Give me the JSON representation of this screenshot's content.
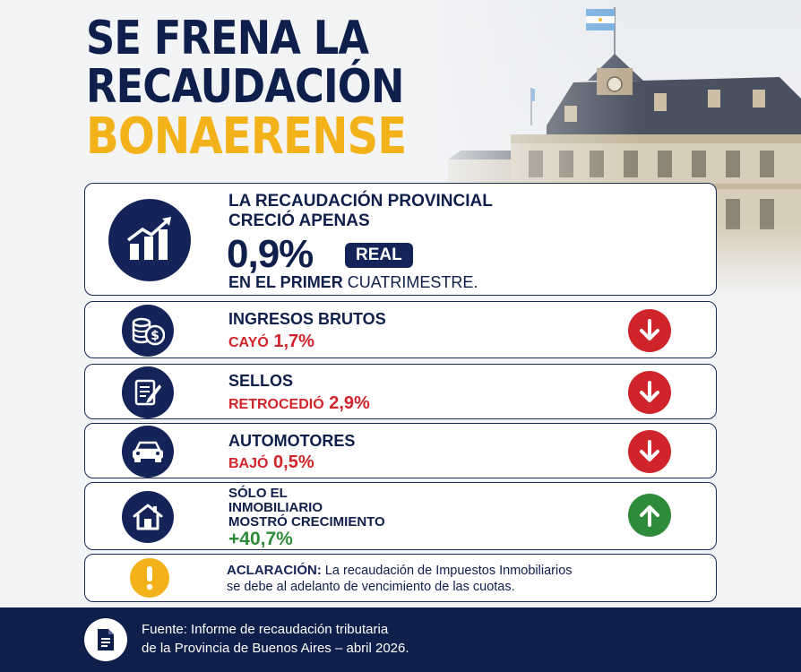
{
  "title": {
    "line1": "SE FRENA LA",
    "line2": "RECAUDACIÓN",
    "line3": "BONAERENSE"
  },
  "colors": {
    "navy": "#0f1f4b",
    "accent_yellow": "#f4b21a",
    "decline_red": "#d0242b",
    "growth_green": "#2e8b3a"
  },
  "main_card": {
    "icon": "growth-chart-icon",
    "line1": "LA RECAUDACIÓN PROVINCIAL",
    "line2": "CRECIÓ APENAS",
    "value": "0,9%",
    "badge": "REAL",
    "line3_bold": "EN EL PRIMER",
    "line3_rest": "CUATRIMESTRE."
  },
  "items": [
    {
      "icon": "coins-dollar-icon",
      "label": "INGRESOS BRUTOS",
      "verb": "CAYÓ",
      "value": "1,7%",
      "trend": "down",
      "trend_icon": "arrow-down-icon"
    },
    {
      "icon": "document-pen-icon",
      "label": "SELLOS",
      "verb": "RETROCEDIÓ",
      "value": "2,9%",
      "trend": "down",
      "trend_icon": "arrow-down-icon"
    },
    {
      "icon": "car-icon",
      "label": "AUTOMOTORES",
      "verb": "BAJÓ",
      "value": "0,5%",
      "trend": "down",
      "trend_icon": "arrow-down-icon"
    },
    {
      "icon": "house-icon",
      "label_lines": [
        "SÓLO EL",
        "INMOBILIARIO",
        "MOSTRÓ CRECIMIENTO"
      ],
      "value": "+40,7%",
      "trend": "up",
      "trend_icon": "arrow-up-icon"
    }
  ],
  "clarification": {
    "icon": "exclamation-icon",
    "label": "ACLARACIÓN:",
    "text_line1": "La recaudación de Impuestos Inmobiliarios",
    "text_line2": "se debe al adelanto de vencimiento de las cuotas."
  },
  "footer": {
    "icon": "document-icon",
    "line1": "Fuente: Informe de recaudación tributaria",
    "line2": "de la Provincia de Buenos Aires – abril 2026."
  }
}
